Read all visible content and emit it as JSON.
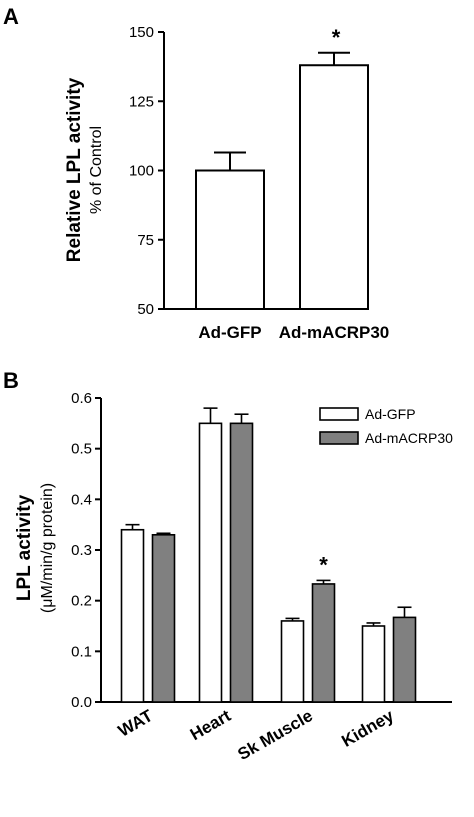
{
  "chart_data": [
    {
      "panel": "A",
      "type": "bar",
      "title": "",
      "ylabel": "Relative LPL activity",
      "ylabel_sub": "% of Control",
      "xlabel": "",
      "categories": [
        "Ad-GFP",
        "Ad-mACRP30"
      ],
      "series": [
        {
          "values": [
            100,
            138
          ],
          "errors": [
            6.5,
            4.5
          ],
          "colors": [
            "#ffffff",
            "#ffffff"
          ]
        }
      ],
      "significance": [
        "",
        "*"
      ],
      "ylim": [
        50,
        150
      ],
      "yticks": [
        50,
        75,
        100,
        125,
        150
      ],
      "ytick_labels": [
        "50",
        "75",
        "100",
        "125",
        "150"
      ],
      "grid": false
    },
    {
      "panel": "B",
      "type": "bar",
      "title": "",
      "ylabel": "LPL activity",
      "ylabel_sub": "(μM/min/g protein)",
      "xlabel": "",
      "categories": [
        "WAT",
        "Heart",
        "Sk Muscle",
        "Kidney"
      ],
      "series": [
        {
          "name": "Ad-GFP",
          "color": "#ffffff",
          "values": [
            0.34,
            0.55,
            0.16,
            0.15
          ],
          "errors": [
            0.01,
            0.03,
            0.005,
            0.006
          ]
        },
        {
          "name": "Ad-mACRP30",
          "color": "#808080",
          "values": [
            0.33,
            0.55,
            0.233,
            0.167
          ],
          "errors": [
            0.003,
            0.018,
            0.007,
            0.02
          ]
        }
      ],
      "significance": [
        "",
        "",
        "*",
        ""
      ],
      "ylim": [
        0.0,
        0.6
      ],
      "yticks": [
        0.0,
        0.1,
        0.2,
        0.3,
        0.4,
        0.5,
        0.6
      ],
      "ytick_labels": [
        "0.0",
        "0.1",
        "0.2",
        "0.3",
        "0.4",
        "0.5",
        "0.6"
      ],
      "legend_position": "top-right",
      "grid": false
    }
  ]
}
